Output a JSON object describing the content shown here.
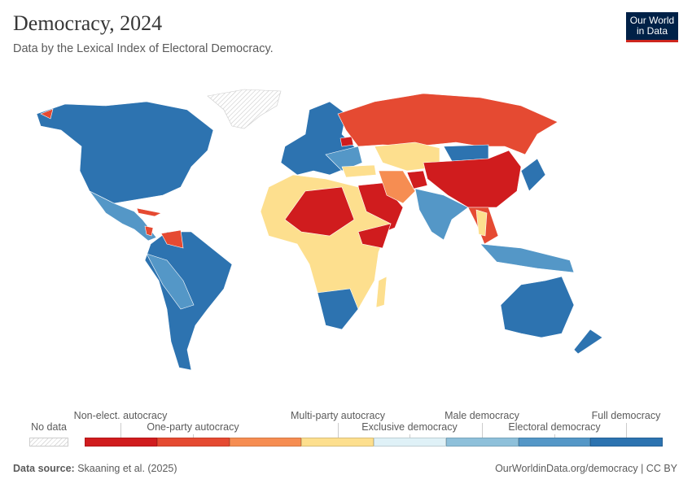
{
  "header": {
    "title": "Democracy, 2024",
    "subtitle": "Data by the Lexical Index of Electoral Democracy.",
    "logo_text": "Our World in Data"
  },
  "legend": {
    "no_data_label": "No data",
    "categories": [
      {
        "label": "Non-elect. autocracy",
        "color": "#d01c1e"
      },
      {
        "label": "One-party autocracy",
        "color": "#e54a32"
      },
      {
        "label": "Multi-party autocracy",
        "color": "#f68d52"
      },
      {
        "label": "",
        "color": "#fddf8e"
      },
      {
        "label": "Exclusive democracy",
        "color": "#dff1f7"
      },
      {
        "label": "Male democracy",
        "color": "#8ec0da"
      },
      {
        "label": "Electoral democracy",
        "color": "#5497c7"
      },
      {
        "label": "Full democracy",
        "color": "#2d73b0"
      }
    ]
  },
  "footer": {
    "source_label": "Data source:",
    "source": "Skaaning et al. (2025)",
    "url": "OurWorldinData.org/democracy",
    "license": "CC BY"
  }
}
